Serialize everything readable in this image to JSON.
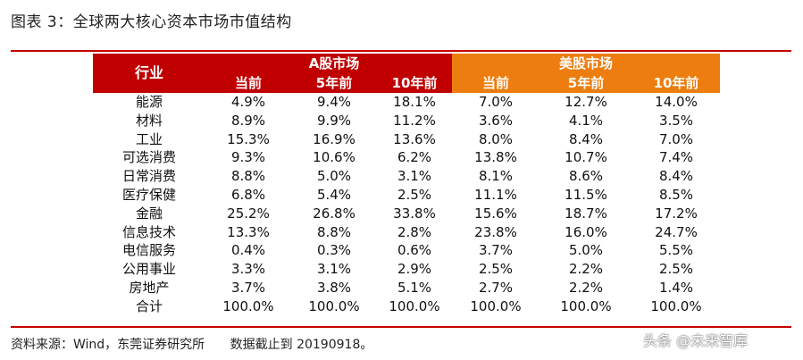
{
  "title": "图表 3：全球两大核心资本市场市值结构",
  "header": {
    "industry": "行业",
    "a_share_group": "A股市场",
    "us_group": "美股市场",
    "a_cols": [
      "当前",
      "5年前",
      "10年前"
    ],
    "us_cols": [
      "当前",
      "5年前",
      "10年前"
    ]
  },
  "rows": [
    {
      "label": "能源",
      "values": [
        "4.9%",
        "9.4%",
        "18.1%",
        "7.0%",
        "12.7%",
        "14.0%"
      ]
    },
    {
      "label": "材料",
      "values": [
        "8.9%",
        "9.9%",
        "11.2%",
        "3.6%",
        "4.1%",
        "3.5%"
      ]
    },
    {
      "label": "工业",
      "values": [
        "15.3%",
        "16.9%",
        "13.6%",
        "8.0%",
        "8.4%",
        "7.0%"
      ]
    },
    {
      "label": "可选消费",
      "values": [
        "9.3%",
        "10.6%",
        "6.2%",
        "13.8%",
        "10.7%",
        "7.4%"
      ]
    },
    {
      "label": "日常消费",
      "values": [
        "8.8%",
        "5.0%",
        "3.1%",
        "8.1%",
        "8.6%",
        "8.4%"
      ]
    },
    {
      "label": "医疗保健",
      "values": [
        "6.8%",
        "5.4%",
        "2.5%",
        "11.1%",
        "11.5%",
        "8.5%"
      ]
    },
    {
      "label": "金融",
      "values": [
        "25.2%",
        "26.8%",
        "33.8%",
        "15.6%",
        "18.7%",
        "17.2%"
      ]
    },
    {
      "label": "信息技术",
      "values": [
        "13.3%",
        "8.8%",
        "2.8%",
        "23.8%",
        "16.0%",
        "24.7%"
      ]
    },
    {
      "label": "电信服务",
      "values": [
        "0.4%",
        "0.3%",
        "0.6%",
        "3.7%",
        "5.0%",
        "5.5%"
      ]
    },
    {
      "label": "公用事业",
      "values": [
        "3.3%",
        "3.1%",
        "2.9%",
        "2.5%",
        "2.2%",
        "2.5%"
      ]
    },
    {
      "label": "房地产",
      "values": [
        "3.7%",
        "3.8%",
        "5.1%",
        "2.7%",
        "2.2%",
        "1.4%"
      ]
    },
    {
      "label": "合计",
      "values": [
        "100.0%",
        "100.0%",
        "100.0%",
        "100.0%",
        "100.0%",
        "100.0%"
      ]
    }
  ],
  "source": "资料来源：Wind，东莞证券研究所",
  "date_note": "数据截止到 20190918。",
  "watermark": "头条 @未来智库",
  "colors": {
    "a_share": "#c00000",
    "us": "#ec7d0e",
    "rule": "#c40000"
  }
}
